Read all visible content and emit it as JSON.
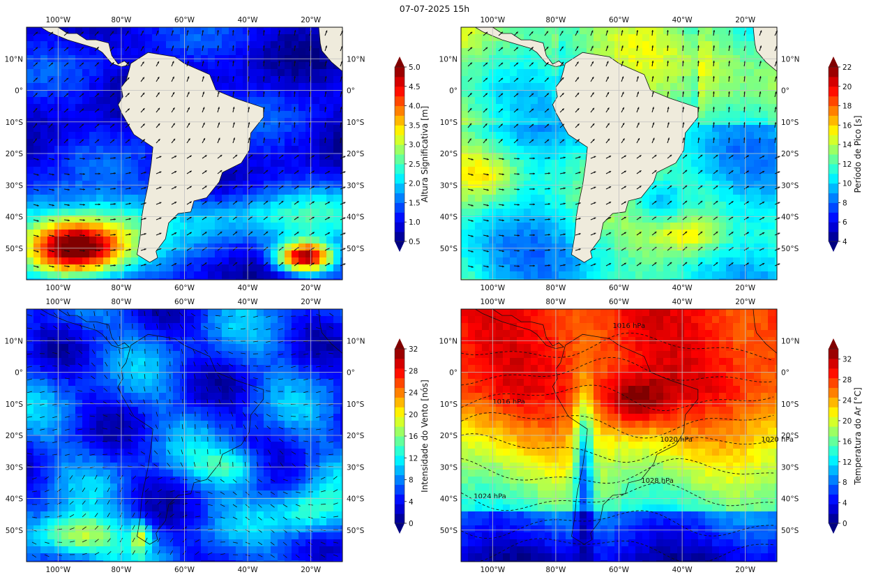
{
  "figure": {
    "title": "07-07-2025 15h"
  },
  "axis_labels": {
    "x": [
      "100°W",
      "80°W",
      "60°W",
      "40°W",
      "20°W"
    ],
    "y": [
      "10°N",
      "0°",
      "10°S",
      "20°S",
      "30°S",
      "40°S",
      "50°S"
    ]
  },
  "chart_data": [
    {
      "type": "heatmap",
      "variable": "Altura Significativa",
      "colorbar": {
        "label": "Altura Significativa [m]",
        "ticks": [
          "0.5",
          "1.0",
          "1.5",
          "2.0",
          "2.5",
          "3.0",
          "3.5",
          "4.0",
          "4.5",
          "5.0"
        ],
        "range": [
          0.5,
          5.0
        ],
        "colormap": "jet"
      },
      "lon_range": [
        -110,
        -10
      ],
      "lat_range": [
        -60,
        20
      ],
      "overlay": "wave direction arrows",
      "features": [
        {
          "description": "high waves",
          "lon": -92,
          "lat": -50,
          "value": 5.0
        },
        {
          "description": "high waves",
          "lon": -22,
          "lat": -53,
          "value": 5.0
        }
      ]
    },
    {
      "type": "heatmap",
      "variable": "Período de Pico",
      "colorbar": {
        "label": "Período de Pico [s]",
        "ticks": [
          "4",
          "6",
          "8",
          "10",
          "12",
          "14",
          "16",
          "18",
          "20",
          "22"
        ],
        "range": [
          4,
          22
        ],
        "colormap": "jet"
      },
      "lon_range": [
        -110,
        -10
      ],
      "lat_range": [
        -60,
        20
      ],
      "overlay": "wave direction arrows"
    },
    {
      "type": "heatmap",
      "variable": "Intensidade do Vento",
      "colorbar": {
        "label": "Intensidade do Vento [nós]",
        "ticks": [
          "0",
          "4",
          "8",
          "12",
          "16",
          "20",
          "24",
          "28",
          "32"
        ],
        "range": [
          0,
          32
        ],
        "colormap": "jet"
      },
      "lon_range": [
        -110,
        -10
      ],
      "lat_range": [
        -60,
        20
      ],
      "overlay": "wind streamlines"
    },
    {
      "type": "heatmap",
      "variable": "Temperatura do Ar",
      "colorbar": {
        "label": "Temperatura do Ar [°C]",
        "ticks": [
          "0",
          "4",
          "8",
          "12",
          "16",
          "20",
          "24",
          "28",
          "32"
        ],
        "range": [
          0,
          34
        ],
        "colormap": "jet"
      },
      "lon_range": [
        -110,
        -10
      ],
      "lat_range": [
        -60,
        20
      ],
      "overlay": "pressure isobars (dashed)",
      "isobar_labels": [
        "1016 hPa",
        "1016 hPa",
        "1020 hPa",
        "1020 hPa",
        "1024 hPa",
        "1028 hPa"
      ]
    }
  ]
}
